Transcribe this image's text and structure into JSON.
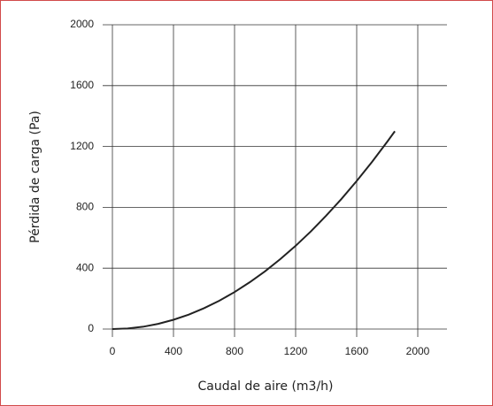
{
  "chart_data": {
    "type": "line",
    "xlabel": "Caudal de aire (m3/h)",
    "ylabel": "Pérdida de carga (Pa)",
    "x": [
      0,
      100,
      200,
      300,
      400,
      500,
      600,
      700,
      800,
      900,
      1000,
      1100,
      1200,
      1300,
      1400,
      1500,
      1600,
      1700,
      1800,
      1850
    ],
    "series": [
      {
        "color": "#222222",
        "values": [
          0,
          4,
          15,
          34,
          61,
          95,
          137,
          186,
          243,
          308,
          380,
          460,
          547,
          642,
          745,
          855,
          973,
          1098,
          1231,
          1300
        ]
      }
    ],
    "xlim": [
      0,
      2000
    ],
    "xticks": [
      0,
      400,
      800,
      1200,
      1600,
      2000
    ],
    "ylim": [
      0,
      2000
    ],
    "yticks": [
      0,
      400,
      800,
      1200,
      1600,
      2000
    ],
    "grid": true
  }
}
